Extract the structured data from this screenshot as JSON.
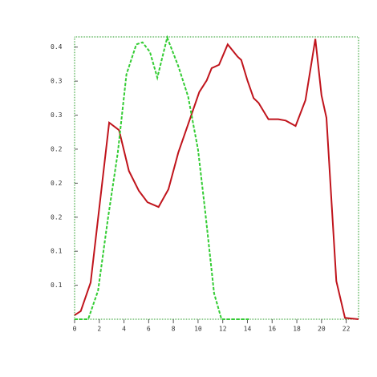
{
  "chart_data": {
    "type": "line",
    "xlim": [
      0,
      23
    ],
    "xticks": [
      0,
      2,
      4,
      6,
      8,
      10,
      12,
      14,
      16,
      18,
      20,
      22
    ],
    "ylim": [
      0,
      0.415
    ],
    "yticks": [
      {
        "value": 0.05,
        "label": "0.1"
      },
      {
        "value": 0.1,
        "label": "0.1"
      },
      {
        "value": 0.15,
        "label": "0.2"
      },
      {
        "value": 0.2,
        "label": "0.2"
      },
      {
        "value": 0.25,
        "label": "0.2"
      },
      {
        "value": 0.3,
        "label": "0.3"
      },
      {
        "value": 0.35,
        "label": "0.3"
      },
      {
        "value": 0.4,
        "label": "0.4"
      }
    ],
    "frame_color": "#2a9d2a",
    "series": [
      {
        "color": "#c0141c",
        "dash": false,
        "x": [
          0,
          0.5,
          1.3,
          2.8,
          3.6,
          4.4,
          5.2,
          5.9,
          6.8,
          7.6,
          8.4,
          9.3,
          10.1,
          10.7,
          11.1,
          11.7,
          12.4,
          13.2,
          13.5,
          14.0,
          14.5,
          14.9,
          15.7,
          16.5,
          17.1,
          17.9,
          18.7,
          19.5,
          20.0,
          20.4,
          21.2,
          21.9,
          23
        ],
        "values": [
          0.006,
          0.012,
          0.054,
          0.289,
          0.278,
          0.218,
          0.189,
          0.172,
          0.165,
          0.191,
          0.245,
          0.292,
          0.334,
          0.351,
          0.369,
          0.374,
          0.404,
          0.386,
          0.381,
          0.351,
          0.325,
          0.318,
          0.294,
          0.294,
          0.292,
          0.284,
          0.322,
          0.412,
          0.329,
          0.296,
          0.056,
          0.002,
          0
        ]
      },
      {
        "color": "#33cc33",
        "dash": true,
        "x": [
          0,
          1.1,
          1.9,
          2.7,
          3.5,
          4.2,
          5.0,
          5.5,
          6.1,
          6.7,
          7.5,
          8.4,
          9.2,
          10.0,
          10.6,
          11.3,
          11.9,
          14.1
        ],
        "values": [
          0,
          0,
          0.042,
          0.148,
          0.245,
          0.36,
          0.404,
          0.407,
          0.393,
          0.355,
          0.414,
          0.372,
          0.327,
          0.249,
          0.155,
          0.038,
          0,
          0
        ]
      }
    ]
  }
}
